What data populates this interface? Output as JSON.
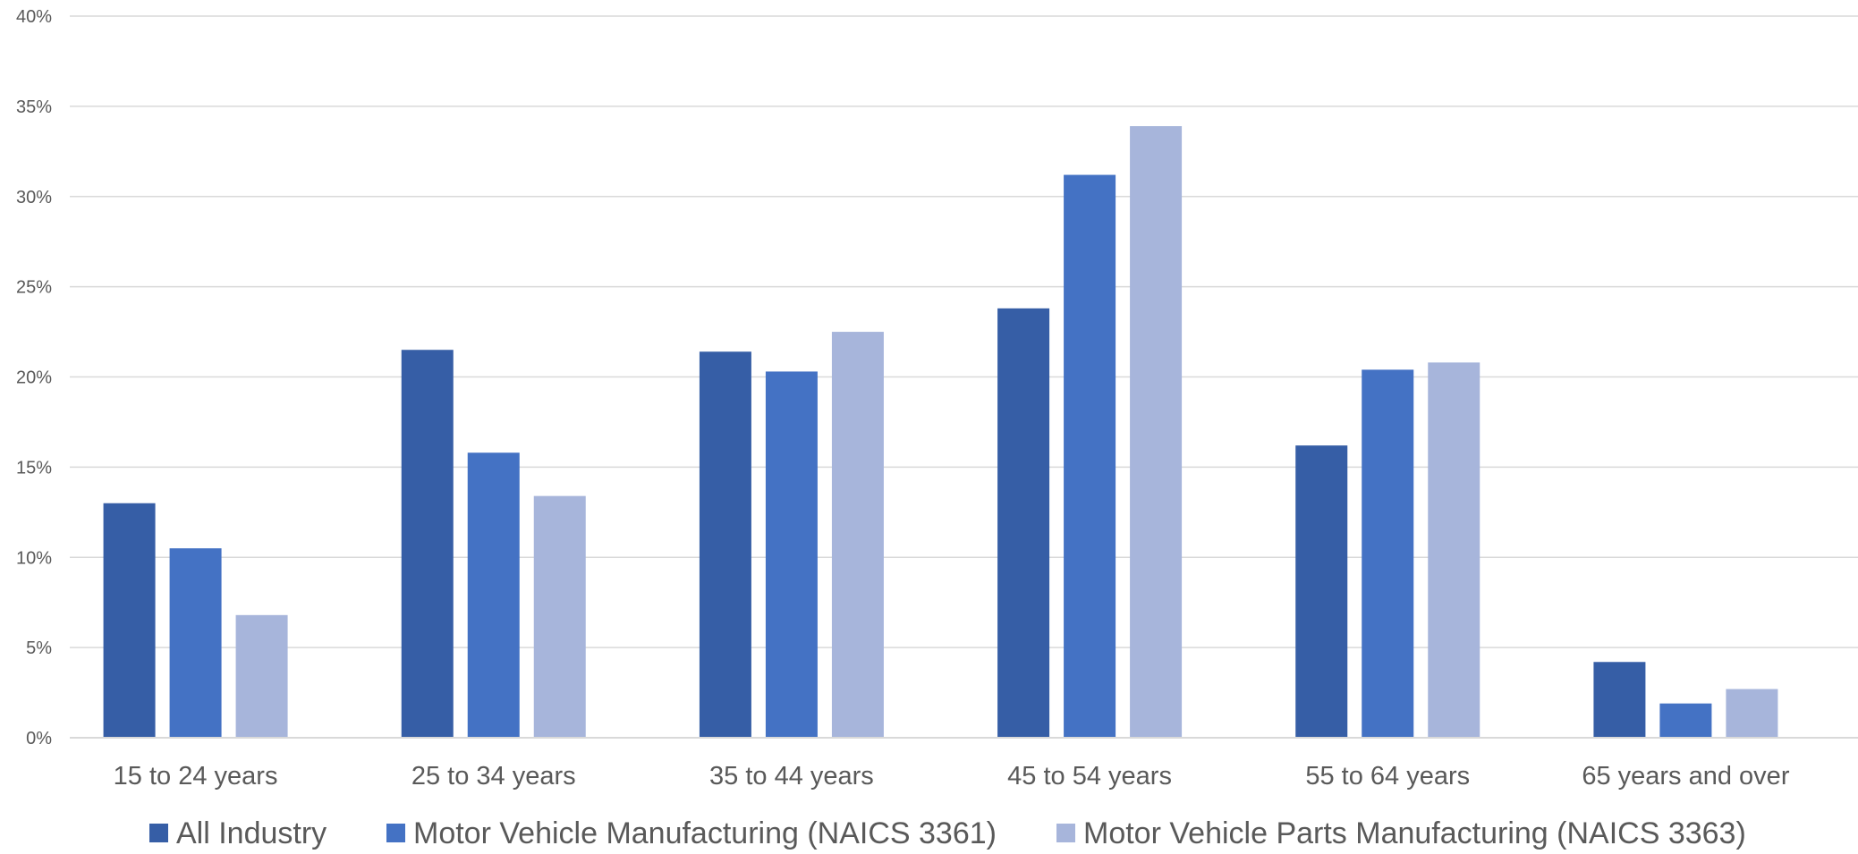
{
  "chart_data": {
    "type": "bar",
    "title": "",
    "xlabel": "",
    "ylabel": "",
    "categories": [
      "15 to 24 years",
      "25 to 34 years",
      "35 to 44 years",
      "45 to 54 years",
      "55 to 64 years",
      "65 years and over"
    ],
    "series": [
      {
        "name": "All Industry",
        "color": "#365EA6",
        "values": [
          13.0,
          21.5,
          21.4,
          23.8,
          16.2,
          4.2
        ]
      },
      {
        "name": "Motor Vehicle Manufacturing (NAICS 3361)",
        "color": "#4472C4",
        "values": [
          10.5,
          15.8,
          20.3,
          31.2,
          20.4,
          1.9
        ]
      },
      {
        "name": "Motor Vehicle Parts Manufacturing (NAICS 3363)",
        "color": "#A7B5DB",
        "values": [
          6.8,
          13.4,
          22.5,
          33.9,
          20.8,
          2.7
        ]
      }
    ],
    "ylim": [
      0,
      40
    ],
    "yticks": [
      0,
      5,
      10,
      15,
      20,
      25,
      30,
      35,
      40
    ],
    "ytick_labels": [
      "0%",
      "5%",
      "10%",
      "15%",
      "20%",
      "25%",
      "30%",
      "35%",
      "40%"
    ],
    "grid": true,
    "legend_position": "bottom"
  }
}
